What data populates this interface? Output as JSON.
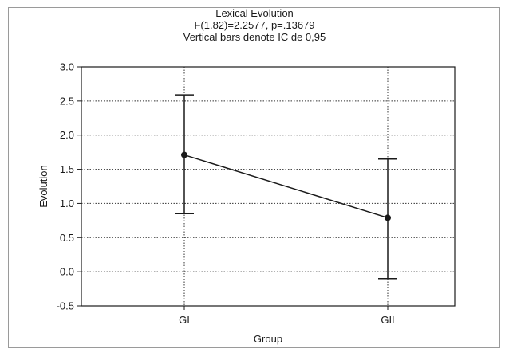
{
  "chart_data": {
    "type": "line",
    "title": "Lexical Evolution",
    "subtitle_lines": [
      "F(1.82)=2.2577, p=.13679",
      "Vertical bars denote IC de 0,95"
    ],
    "xlabel": "Group",
    "ylabel": "Evolution",
    "categories": [
      "GI",
      "GII"
    ],
    "series": [
      {
        "values": [
          1.71,
          0.79
        ],
        "ci_lower": [
          0.85,
          -0.1
        ],
        "ci_upper": [
          2.59,
          1.65
        ]
      }
    ],
    "ylim": [
      -0.5,
      3.0
    ],
    "yticks": [
      "3.0",
      "2.5",
      "2.0",
      "1.5",
      "1.0",
      "0.5",
      "0.0",
      "-0.5"
    ],
    "grid": true,
    "colors": {
      "line": "#1a1a1a",
      "grid": "#333333",
      "frame": "#9a9a9a"
    }
  }
}
